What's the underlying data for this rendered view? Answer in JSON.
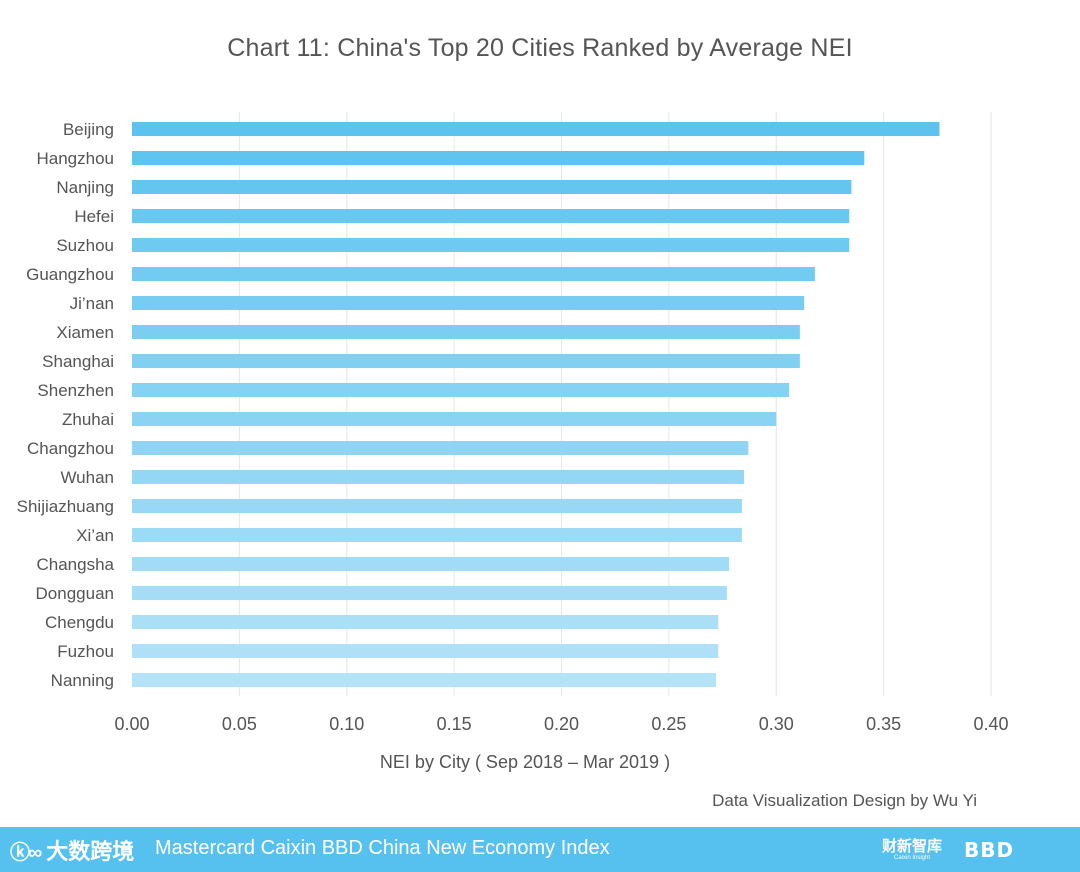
{
  "chart_data": {
    "type": "bar",
    "orientation": "horizontal",
    "title": "Chart 11:  China's Top 20 Cities Ranked by Average NEI",
    "xlabel": "NEI by City ( Sep 2018 – Mar 2019 )",
    "ylabel": "",
    "xlim": [
      0,
      0.4
    ],
    "x_ticks": [
      "0.00",
      "0.05",
      "0.10",
      "0.15",
      "0.20",
      "0.25",
      "0.30",
      "0.35",
      "0.40"
    ],
    "grid": "vertical",
    "categories": [
      "Beijing",
      "Hangzhou",
      "Nanjing",
      "Hefei",
      "Suzhou",
      "Guangzhou",
      "Ji’nan",
      "Xiamen",
      "Shanghai",
      "Shenzhen",
      "Zhuhai",
      "Changzhou",
      "Wuhan",
      "Shijiazhuang",
      "Xi’an",
      "Changsha",
      "Dongguan",
      "Chengdu",
      "Fuzhou",
      "Nanning"
    ],
    "values": [
      0.376,
      0.341,
      0.335,
      0.334,
      0.334,
      0.318,
      0.313,
      0.311,
      0.311,
      0.306,
      0.3,
      0.287,
      0.285,
      0.284,
      0.284,
      0.278,
      0.277,
      0.273,
      0.273,
      0.272
    ],
    "colors": {
      "bar_start": "#5bc3ee",
      "bar_end": "#b4e2f7",
      "grid": "#e6e6e6",
      "text": "#555555"
    }
  },
  "credit": "Data Visualization Design by Wu Yi",
  "footer": {
    "background": "#56c1ee",
    "logo_left_text": "大数跨境",
    "logo_left_icon": "kc-logo-icon",
    "index_name": "Mastercard Caixin BBD China New Economy Index",
    "caixin_logo_cn": "财新智库",
    "caixin_logo_en": "Caixin Insight",
    "bbd_logo": "BBD"
  }
}
